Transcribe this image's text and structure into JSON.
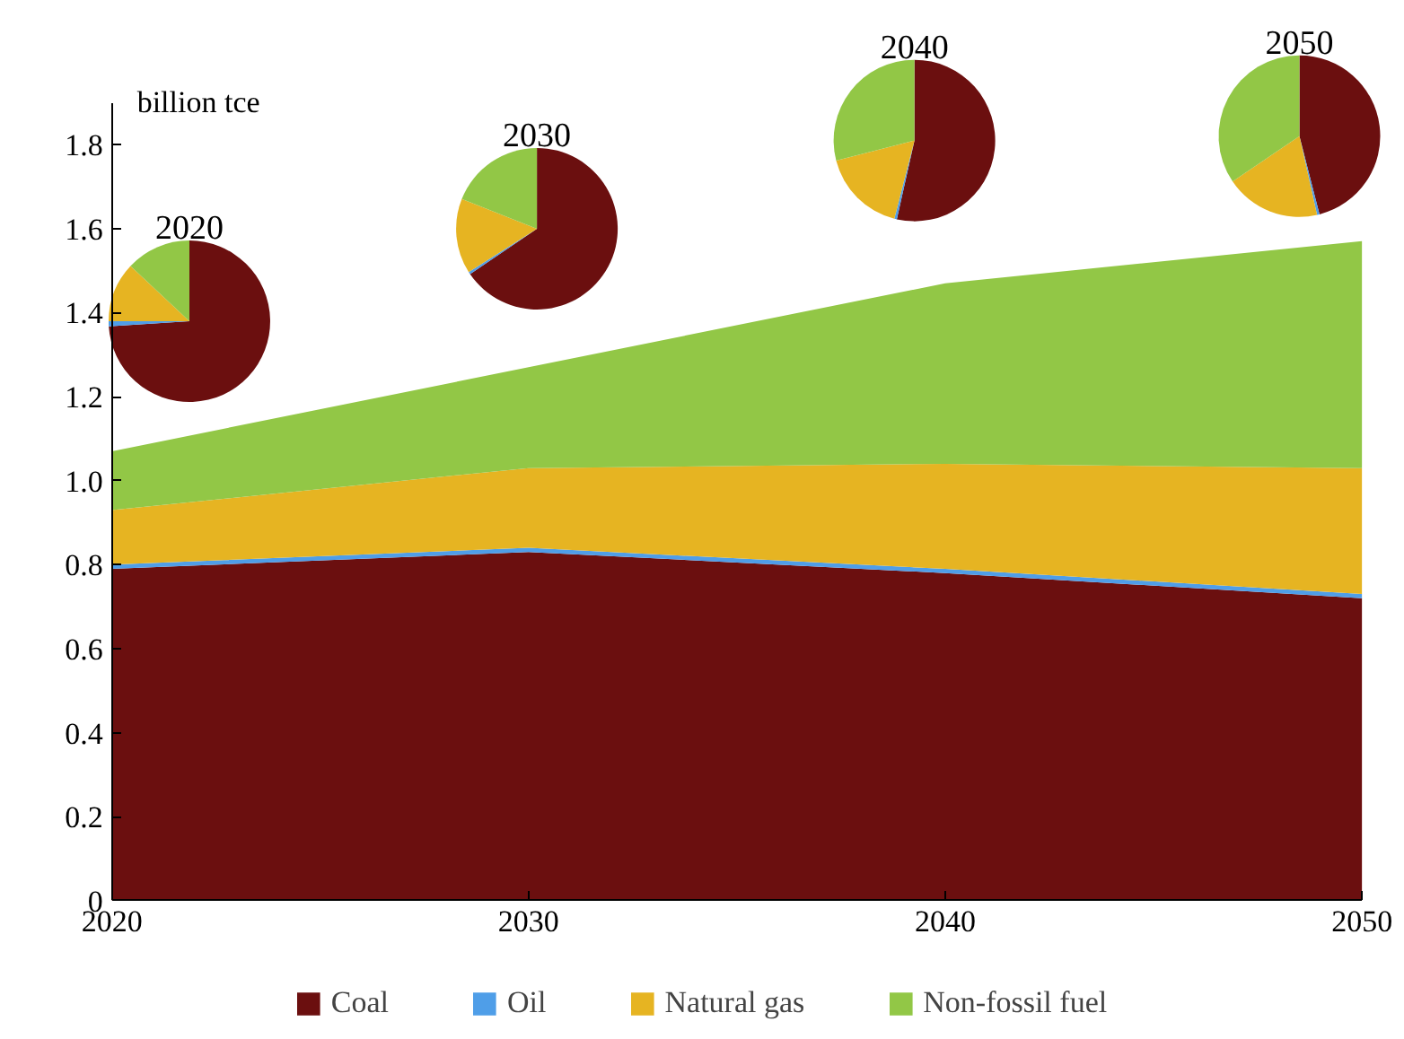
{
  "chart_data": [
    {
      "type": "area",
      "stacked": true,
      "ylabel": "billion tce",
      "x": [
        2020,
        2030,
        2040,
        2050
      ],
      "xlim": [
        2020,
        2050
      ],
      "xticks": [
        2020,
        2030,
        2040,
        2050
      ],
      "ylim": [
        0,
        1.9
      ],
      "yticks": [
        0,
        0.2,
        0.4,
        0.6,
        0.8,
        {
          "value": 1.0,
          "label": "1.0"
        },
        1.2,
        1.4,
        1.6,
        1.8
      ],
      "grid": false,
      "legend": "bottom",
      "series": [
        {
          "name": "Coal",
          "color": "#6b0f0f",
          "values": [
            0.79,
            0.83,
            0.78,
            0.72
          ]
        },
        {
          "name": "Oil",
          "color": "#4f9ee8",
          "values": [
            0.01,
            0.01,
            0.01,
            0.01
          ]
        },
        {
          "name": "Natural gas",
          "color": "#e6b422",
          "values": [
            0.13,
            0.19,
            0.25,
            0.3
          ]
        },
        {
          "name": "Non-fossil fuel",
          "color": "#92c746",
          "values": [
            0.14,
            0.24,
            0.43,
            0.54
          ]
        }
      ]
    },
    {
      "type": "pie",
      "title": "2020",
      "categories": [
        null,
        null,
        null,
        null
      ],
      "values": [
        74,
        1,
        12,
        13
      ],
      "colors": [
        "#6b0f0f",
        "#4f9ee8",
        "#e6b422",
        "#92c746"
      ]
    },
    {
      "type": "pie",
      "title": "2030",
      "categories": [
        null,
        null,
        null,
        null
      ],
      "values": [
        65.5,
        0.5,
        15,
        19
      ],
      "colors": [
        "#6b0f0f",
        "#4f9ee8",
        "#e6b422",
        "#92c746"
      ]
    },
    {
      "type": "pie",
      "title": "2040",
      "categories": [
        null,
        null,
        null,
        null
      ],
      "values": [
        53.5,
        0.5,
        17,
        29
      ],
      "colors": [
        "#6b0f0f",
        "#4f9ee8",
        "#e6b422",
        "#92c746"
      ]
    },
    {
      "type": "pie",
      "title": "2050",
      "categories": [
        null,
        null,
        null,
        null
      ],
      "values": [
        46,
        0.5,
        19,
        34.5
      ],
      "colors": [
        "#6b0f0f",
        "#4f9ee8",
        "#e6b422",
        "#92c746"
      ]
    }
  ]
}
